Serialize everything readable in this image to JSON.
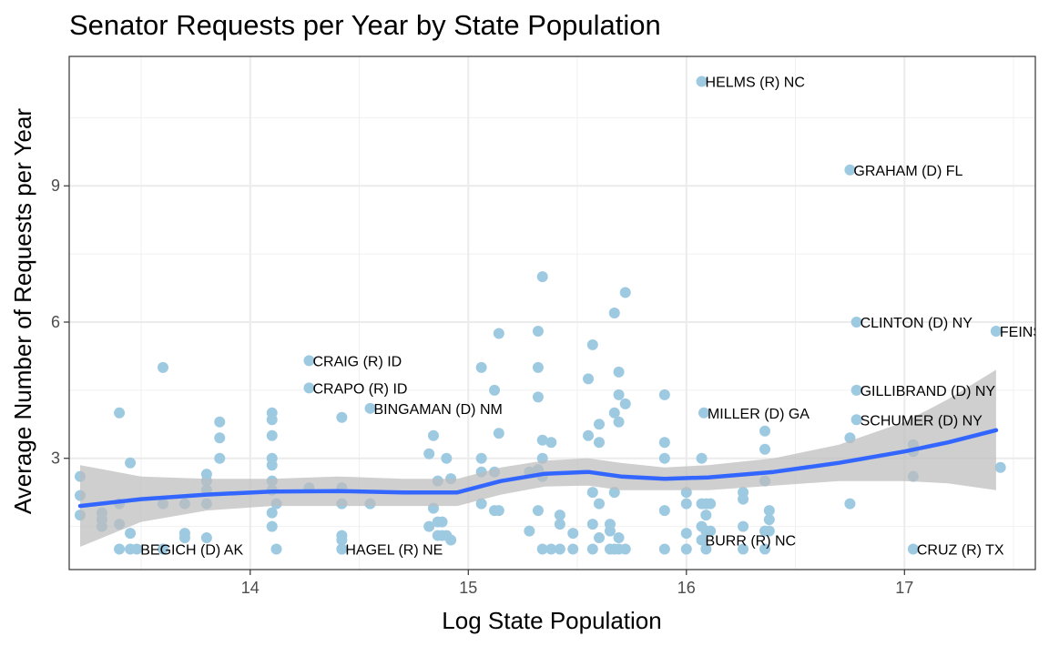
{
  "chart_data": {
    "type": "scatter",
    "title": "Senator Requests per Year by State Population",
    "xlabel": "Log State Population",
    "ylabel": "Average Number of Requests per Year",
    "xlim": [
      13.17,
      17.6
    ],
    "ylim": [
      0.55,
      11.85
    ],
    "x_ticks": [
      14,
      15,
      16,
      17
    ],
    "x_tick_labels": [
      "14",
      "15",
      "16",
      "17"
    ],
    "y_ticks": [
      3,
      6,
      9
    ],
    "y_tick_labels": [
      "3",
      "6",
      "9"
    ],
    "grid": true,
    "point_color": "#9ecae1",
    "smooth_color": "#3366ff",
    "band_color": "#bdbdbd",
    "points": [
      [
        13.22,
        2.6
      ],
      [
        13.22,
        2.18
      ],
      [
        13.22,
        1.75
      ],
      [
        13.32,
        1.8
      ],
      [
        13.32,
        1.65
      ],
      [
        13.32,
        1.5
      ],
      [
        13.4,
        4.0
      ],
      [
        13.4,
        2.0
      ],
      [
        13.4,
        1.55
      ],
      [
        13.4,
        1.0
      ],
      [
        13.45,
        2.9
      ],
      [
        13.45,
        1.35
      ],
      [
        13.45,
        1.0
      ],
      [
        13.6,
        5.0
      ],
      [
        13.6,
        2.0
      ],
      [
        13.6,
        1.0
      ],
      [
        13.7,
        2.0
      ],
      [
        13.7,
        1.35
      ],
      [
        13.7,
        1.25
      ],
      [
        13.8,
        2.65
      ],
      [
        13.8,
        2.5
      ],
      [
        13.8,
        2.3
      ],
      [
        13.8,
        2.0
      ],
      [
        13.8,
        1.25
      ],
      [
        13.86,
        3.8
      ],
      [
        13.86,
        3.45
      ],
      [
        13.86,
        3.0
      ],
      [
        14.1,
        4.0
      ],
      [
        14.1,
        3.85
      ],
      [
        14.1,
        3.5
      ],
      [
        14.1,
        3.0
      ],
      [
        14.1,
        2.85
      ],
      [
        14.1,
        2.5
      ],
      [
        14.1,
        2.3
      ],
      [
        14.1,
        1.8
      ],
      [
        14.1,
        1.5
      ],
      [
        14.12,
        2.0
      ],
      [
        14.12,
        1.0
      ],
      [
        14.27,
        2.35
      ],
      [
        14.42,
        3.9
      ],
      [
        14.42,
        2.35
      ],
      [
        14.42,
        2.0
      ],
      [
        14.42,
        1.3
      ],
      [
        14.42,
        1.2
      ],
      [
        14.42,
        1.0
      ],
      [
        14.55,
        2.0
      ],
      [
        14.82,
        3.1
      ],
      [
        14.82,
        1.5
      ],
      [
        14.84,
        3.5
      ],
      [
        14.84,
        1.9
      ],
      [
        14.86,
        2.5
      ],
      [
        14.86,
        1.6
      ],
      [
        14.86,
        1.3
      ],
      [
        14.88,
        1.6
      ],
      [
        14.88,
        1.3
      ],
      [
        14.9,
        3.0
      ],
      [
        14.9,
        1.3
      ],
      [
        14.92,
        2.55
      ],
      [
        14.92,
        1.2
      ],
      [
        15.06,
        5.0
      ],
      [
        15.06,
        3.0
      ],
      [
        15.06,
        2.7
      ],
      [
        15.06,
        2.0
      ],
      [
        15.12,
        4.5
      ],
      [
        15.12,
        2.7
      ],
      [
        15.12,
        1.85
      ],
      [
        15.14,
        5.75
      ],
      [
        15.14,
        3.55
      ],
      [
        15.14,
        1.85
      ],
      [
        15.28,
        2.7
      ],
      [
        15.28,
        1.4
      ],
      [
        15.32,
        5.8
      ],
      [
        15.32,
        5.0
      ],
      [
        15.32,
        4.35
      ],
      [
        15.32,
        2.75
      ],
      [
        15.32,
        1.85
      ],
      [
        15.34,
        7.0
      ],
      [
        15.34,
        3.4
      ],
      [
        15.34,
        3.0
      ],
      [
        15.34,
        2.6
      ],
      [
        15.34,
        1.0
      ],
      [
        15.38,
        3.35
      ],
      [
        15.38,
        1.0
      ],
      [
        15.42,
        1.75
      ],
      [
        15.42,
        1.55
      ],
      [
        15.42,
        1.0
      ],
      [
        15.48,
        1.35
      ],
      [
        15.48,
        1.0
      ],
      [
        15.55,
        4.75
      ],
      [
        15.55,
        3.5
      ],
      [
        15.57,
        5.5
      ],
      [
        15.57,
        2.25
      ],
      [
        15.57,
        1.55
      ],
      [
        15.57,
        1.0
      ],
      [
        15.6,
        3.75
      ],
      [
        15.6,
        3.35
      ],
      [
        15.6,
        2.0
      ],
      [
        15.6,
        1.25
      ],
      [
        15.65,
        1.55
      ],
      [
        15.65,
        1.4
      ],
      [
        15.65,
        1.0
      ],
      [
        15.67,
        6.2
      ],
      [
        15.67,
        4.0
      ],
      [
        15.67,
        2.25
      ],
      [
        15.67,
        1.0
      ],
      [
        15.69,
        4.9
      ],
      [
        15.69,
        4.4
      ],
      [
        15.69,
        3.8
      ],
      [
        15.69,
        1.25
      ],
      [
        15.69,
        1.0
      ],
      [
        15.72,
        6.65
      ],
      [
        15.72,
        4.2
      ],
      [
        15.72,
        1.0
      ],
      [
        15.9,
        4.4
      ],
      [
        15.9,
        3.35
      ],
      [
        15.9,
        3.0
      ],
      [
        15.9,
        1.85
      ],
      [
        15.9,
        1.0
      ],
      [
        16.0,
        2.25
      ],
      [
        16.0,
        2.0
      ],
      [
        16.0,
        1.35
      ],
      [
        16.0,
        1.0
      ],
      [
        16.07,
        3.0
      ],
      [
        16.07,
        2.0
      ],
      [
        16.07,
        1.5
      ],
      [
        16.09,
        2.0
      ],
      [
        16.09,
        1.75
      ],
      [
        16.09,
        1.4
      ],
      [
        16.09,
        1.0
      ],
      [
        16.11,
        2.0
      ],
      [
        16.11,
        1.4
      ],
      [
        16.26,
        2.25
      ],
      [
        16.26,
        2.1
      ],
      [
        16.26,
        1.5
      ],
      [
        16.26,
        1.0
      ],
      [
        16.36,
        3.6
      ],
      [
        16.36,
        3.2
      ],
      [
        16.36,
        2.5
      ],
      [
        16.36,
        1.4
      ],
      [
        16.36,
        1.0
      ],
      [
        16.38,
        1.85
      ],
      [
        16.38,
        1.65
      ],
      [
        16.38,
        1.4
      ],
      [
        16.75,
        3.45
      ],
      [
        16.75,
        2.0
      ],
      [
        17.04,
        3.3
      ],
      [
        17.04,
        3.15
      ],
      [
        17.04,
        2.6
      ],
      [
        17.44,
        2.8
      ]
    ],
    "labeled_points": [
      {
        "x": 16.07,
        "y": 11.3,
        "label": "HELMS (R) NC"
      },
      {
        "x": 16.75,
        "y": 9.35,
        "label": "GRAHAM (D) FL"
      },
      {
        "x": 16.78,
        "y": 6.0,
        "label": "CLINTON (D) NY"
      },
      {
        "x": 17.42,
        "y": 5.8,
        "label": "FEINS"
      },
      {
        "x": 14.27,
        "y": 5.15,
        "label": "CRAIG (R) ID"
      },
      {
        "x": 14.27,
        "y": 4.55,
        "label": "CRAPO (R) ID"
      },
      {
        "x": 14.55,
        "y": 4.1,
        "label": "BINGAMAN (D) NM"
      },
      {
        "x": 16.08,
        "y": 4.0,
        "label": "MILLER (D) GA"
      },
      {
        "x": 16.78,
        "y": 4.5,
        "label": "GILLIBRAND (D) NY"
      },
      {
        "x": 16.78,
        "y": 3.85,
        "label": "SCHUMER (D) NY"
      },
      {
        "x": 13.48,
        "y": 1.0,
        "label": "BEGICH (D) AK"
      },
      {
        "x": 14.42,
        "y": 1.0,
        "label": "HAGEL (R) NE"
      },
      {
        "x": 16.07,
        "y": 1.2,
        "label": "BURR (R) NC"
      },
      {
        "x": 17.04,
        "y": 1.0,
        "label": "CRUZ (R) TX"
      }
    ],
    "smooth": {
      "x": [
        13.22,
        13.5,
        13.8,
        14.1,
        14.4,
        14.7,
        14.95,
        15.15,
        15.35,
        15.55,
        15.7,
        15.9,
        16.1,
        16.4,
        16.7,
        17.0,
        17.2,
        17.42
      ],
      "y": [
        1.95,
        2.1,
        2.2,
        2.27,
        2.28,
        2.25,
        2.25,
        2.5,
        2.66,
        2.7,
        2.6,
        2.55,
        2.58,
        2.7,
        2.9,
        3.15,
        3.35,
        3.62
      ],
      "lower": [
        1.05,
        1.6,
        1.85,
        1.95,
        1.95,
        1.95,
        1.95,
        2.2,
        2.38,
        2.4,
        2.3,
        2.3,
        2.3,
        2.4,
        2.5,
        2.5,
        2.45,
        2.3
      ],
      "upper": [
        2.85,
        2.6,
        2.55,
        2.55,
        2.6,
        2.55,
        2.55,
        2.8,
        2.95,
        3.0,
        2.9,
        2.8,
        2.85,
        3.0,
        3.3,
        3.8,
        4.3,
        4.95
      ]
    }
  }
}
